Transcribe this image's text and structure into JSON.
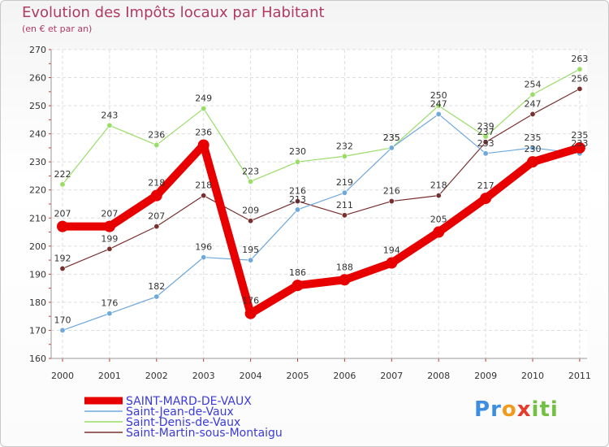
{
  "chart_data": {
    "type": "line",
    "title": "Evolution des Impôts locaux par Habitant",
    "subtitle": "(en € et par an)",
    "xlabel": "",
    "ylabel": "",
    "ylim": [
      160,
      270
    ],
    "yticks": [
      160,
      170,
      180,
      190,
      200,
      210,
      220,
      230,
      240,
      250,
      260,
      270
    ],
    "categories": [
      "2000",
      "2001",
      "2002",
      "2003",
      "2004",
      "2005",
      "2006",
      "2007",
      "2008",
      "2009",
      "2010",
      "2011"
    ],
    "grid": true,
    "legend_position": "bottom-left",
    "series": [
      {
        "name": "SAINT-MARD-DE-VAUX",
        "color": "#e80000",
        "values": [
          207,
          207,
          218,
          236,
          176,
          186,
          188,
          194,
          205,
          217,
          230,
          235
        ]
      },
      {
        "name": "Saint-Jean-de-Vaux",
        "color": "#6fa8dc",
        "values": [
          170,
          176,
          182,
          196,
          195,
          213,
          219,
          235,
          247,
          233,
          235,
          233
        ]
      },
      {
        "name": "Saint-Denis-de-Vaux",
        "color": "#99dd66",
        "values": [
          222,
          243,
          236,
          249,
          223,
          230,
          232,
          235,
          250,
          239,
          254,
          263
        ]
      },
      {
        "name": "Saint-Martin-sous-Montaigu",
        "color": "#7a2f2f",
        "values": [
          192,
          199,
          207,
          218,
          209,
          216,
          211,
          216,
          218,
          237,
          247,
          256
        ]
      }
    ]
  },
  "logo": {
    "letters": [
      "P",
      "r",
      "o",
      "x",
      "i",
      "t",
      "i"
    ],
    "colors": [
      "#3d8ee0",
      "#3d8ee0",
      "#f29a1b",
      "#e63c2c",
      "#74c043",
      "#74c043",
      "#74c043"
    ]
  }
}
